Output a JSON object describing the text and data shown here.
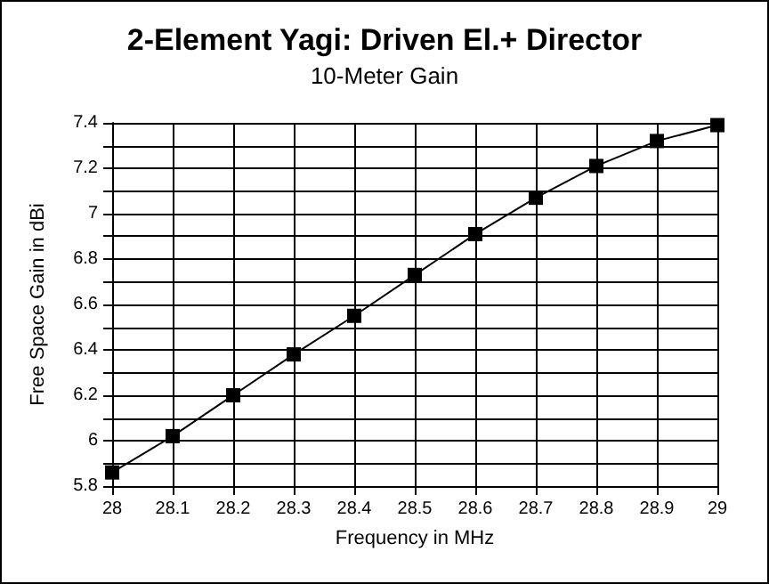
{
  "chart_data": {
    "type": "line",
    "title": "2-Element Yagi: Driven El.+ Director",
    "subtitle": "10-Meter Gain",
    "xlabel": "Frequency in MHz",
    "ylabel": "Free Space Gain in dBi",
    "x": [
      28,
      28.1,
      28.2,
      28.3,
      28.4,
      28.5,
      28.6,
      28.7,
      28.8,
      28.9,
      29
    ],
    "series": [
      {
        "color": "#000000",
        "values": [
          5.86,
          6.02,
          6.2,
          6.38,
          6.55,
          6.73,
          6.91,
          7.07,
          7.21,
          7.32,
          7.39
        ]
      }
    ],
    "xlim": [
      28,
      29
    ],
    "xticks": [
      28,
      28.1,
      28.2,
      28.3,
      28.4,
      28.5,
      28.6,
      28.7,
      28.8,
      28.9,
      29
    ],
    "ylim": [
      5.8,
      7.4
    ],
    "yticks": [
      5.8,
      {
        "value": 5.9,
        "label": null
      },
      6,
      {
        "value": 6.1,
        "label": null
      },
      6.2,
      {
        "value": 6.3,
        "label": null
      },
      6.4,
      {
        "value": 6.5,
        "label": null
      },
      6.6,
      {
        "value": 6.7,
        "label": null
      },
      6.8,
      {
        "value": 6.9,
        "label": null
      },
      7,
      {
        "value": 7.1,
        "label": null
      },
      7.2,
      {
        "value": 7.3,
        "label": null
      },
      7.4
    ],
    "grid": true,
    "marker": "square",
    "line_style": "solid"
  }
}
